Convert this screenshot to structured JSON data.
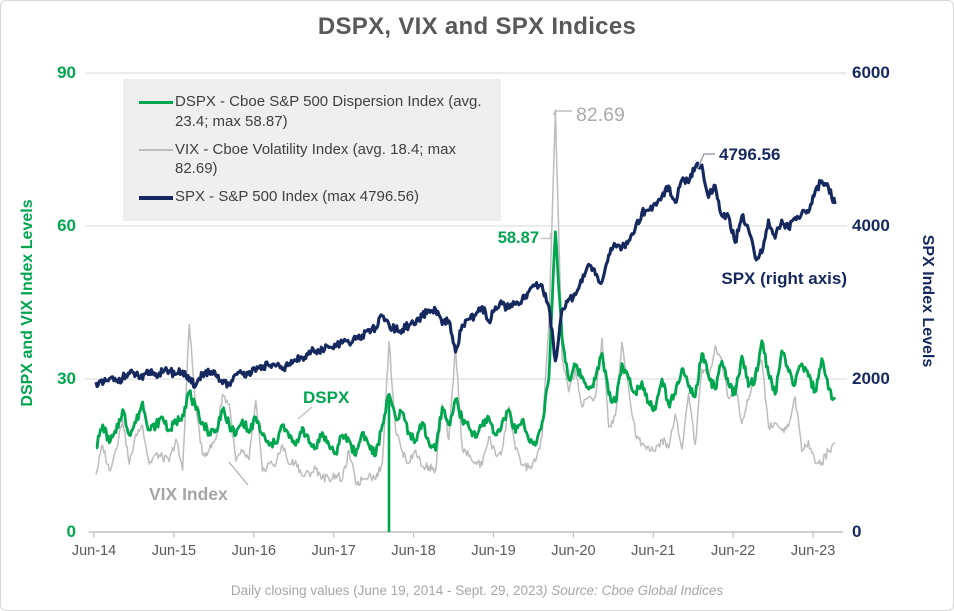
{
  "title": "DSPX, VIX and SPX Indices",
  "footer": {
    "normal": "Daily closing values (June 19, 2014 - Sept. 29, 2023",
    "italic": ") Source: Cboe Global Indices"
  },
  "colors": {
    "dspx_green": "#00A64F",
    "vix_gray": "#BDBDBD",
    "spx_navy": "#16295F",
    "gridline": "#D9D9D9",
    "axis_baseline": "#C0C0C0",
    "title_text": "#595959",
    "footer_text": "#A6A6A6",
    "legend_bg": "#EFEFEF",
    "callout_gray": "#ABABAB"
  },
  "left_axis": {
    "title": "DSPX and VIX Index Levels",
    "ticks": [
      "90",
      "60",
      "30",
      "0"
    ]
  },
  "right_axis": {
    "title": "SPX Index Levels",
    "ticks": [
      "6000",
      "4000",
      "2000",
      "0"
    ]
  },
  "legend": {
    "items": [
      {
        "series": "DSPX",
        "label": "DSPX - Cboe S&P 500 Dispersion Index (avg. 23.4; max 58.87)"
      },
      {
        "series": "VIX",
        "label": "VIX - Cboe Volatility Index (avg. 18.4; max 82.69)"
      },
      {
        "series": "SPX",
        "label": "SPX - S&P 500 Index (max 4796.56)"
      }
    ]
  },
  "series_labels": {
    "dspx": "DSPX",
    "vix": "VIX Index",
    "spx": "SPX (right axis)"
  },
  "chart_data": {
    "type": "line",
    "frequency": "monthly",
    "start_month": "2014-06",
    "end_month": "2023-09",
    "x_tick_labels": [
      "Jun-14",
      "Jun-15",
      "Jun-16",
      "Jun-17",
      "Jun-18",
      "Jun-19",
      "Jun-20",
      "Jun-21",
      "Jun-22",
      "Jun-23"
    ],
    "left_ylim": [
      0,
      90
    ],
    "right_ylim": [
      0,
      6000
    ],
    "grid": "horizontal-only",
    "legend_position": "top-left-inside",
    "series": [
      {
        "name": "DSPX",
        "axis": "left",
        "color": "#00A64F",
        "avg": 23.4,
        "max": 58.87,
        "values": [
          16.5,
          21,
          17.5,
          19.5,
          24,
          19,
          21.5,
          25.5,
          20,
          21,
          22.5,
          20,
          21.5,
          23,
          27.5,
          24,
          21.5,
          19.5,
          20,
          24,
          21,
          19,
          22,
          19.5,
          22.5,
          19,
          17,
          17.5,
          21,
          18.5,
          17,
          20.5,
          17.5,
          16.5,
          19.5,
          17,
          15.5,
          19,
          18,
          15,
          19.5,
          17,
          15,
          21,
          27,
          22.5,
          23.5,
          19.5,
          18,
          21.5,
          17.5,
          16,
          24.5,
          21,
          26,
          22,
          20.5,
          18.5,
          21,
          22.5,
          19,
          21.5,
          24,
          19.5,
          22,
          18,
          17,
          21.5,
          30,
          58.87,
          38,
          30,
          32.5,
          30.5,
          28,
          30,
          35,
          27,
          25.5,
          33,
          30,
          27.5,
          29.5,
          25.5,
          24,
          30,
          25,
          27,
          32,
          28.5,
          26.5,
          35,
          30.5,
          28,
          33.5,
          29,
          27,
          34.5,
          28.5,
          30,
          37.5,
          31,
          27,
          35.5,
          31.5,
          29,
          33,
          30.5,
          27.5,
          34,
          28,
          26
        ]
      },
      {
        "name": "VIX",
        "axis": "left",
        "color": "#BDBDBD",
        "avg": 18.4,
        "max": 82.69,
        "values": [
          11.3,
          17,
          12,
          16.3,
          22,
          13.3,
          19.2,
          20.9,
          13.3,
          15.3,
          14.6,
          13.8,
          18.2,
          12.1,
          40.7,
          24.5,
          15.1,
          16.1,
          18.2,
          27,
          25,
          13.9,
          15.7,
          14.2,
          25.8,
          11.9,
          13.4,
          13.3,
          17.1,
          13.3,
          14,
          11,
          11.5,
          12.4,
          10.8,
          10.4,
          11.2,
          10.3,
          16,
          9.5,
          10.2,
          11.3,
          10.3,
          13.5,
          37.3,
          20,
          15.9,
          13.5,
          16.1,
          12.8,
          12.9,
          12.1,
          25,
          18.1,
          36.1,
          16.6,
          14.8,
          13.7,
          13.1,
          18.7,
          15.1,
          16.1,
          24.6,
          16.2,
          13.2,
          12.6,
          13.8,
          18.8,
          40.1,
          82.69,
          34.2,
          27.5,
          32,
          24.5,
          26.4,
          26.4,
          38,
          20.6,
          22.8,
          37.2,
          28,
          19.4,
          17.3,
          16.8,
          15.8,
          18.2,
          16.5,
          23.1,
          16.3,
          27.2,
          17.2,
          31.9,
          30.2,
          36.5,
          33.4,
          26.2,
          28.7,
          21.3,
          25.9,
          31.6,
          33.6,
          20.6,
          21.4,
          19.9,
          20.7,
          26.5,
          15.8,
          17.9,
          13.6,
          13.6,
          15.9,
          17.5
        ]
      },
      {
        "name": "SPX",
        "axis": "right",
        "color": "#16295F",
        "max": 4796.56,
        "values": [
          1960,
          1930,
          2003,
          1972,
          2018,
          2068,
          2059,
          1995,
          2105,
          2068,
          2086,
          2107,
          2063,
          2104,
          1972,
          1920,
          2079,
          2080,
          2044,
          1940,
          1932,
          2060,
          2065,
          2097,
          2099,
          2174,
          2171,
          2168,
          2126,
          2199,
          2239,
          2279,
          2364,
          2363,
          2384,
          2412,
          2423,
          2470,
          2472,
          2519,
          2575,
          2648,
          2674,
          2824,
          2714,
          2641,
          2648,
          2705,
          2718,
          2816,
          2902,
          2914,
          2712,
          2760,
          2351,
          2704,
          2785,
          2834,
          2946,
          2752,
          2942,
          2980,
          2926,
          2977,
          3038,
          3141,
          3231,
          3226,
          2954,
          2237,
          2912,
          3044,
          3100,
          3271,
          3500,
          3363,
          3270,
          3622,
          3756,
          3714,
          3811,
          3973,
          4181,
          4204,
          4298,
          4395,
          4523,
          4308,
          4605,
          4567,
          4766,
          4796.56,
          4374,
          4530,
          4132,
          4132,
          3785,
          4130,
          3955,
          3586,
          3650,
          4080,
          3840,
          4077,
          3970,
          4109,
          4169,
          4180,
          4450,
          4589,
          4508,
          4288
        ]
      }
    ],
    "annotations": [
      {
        "id": "vix_max",
        "series": "VIX",
        "month": "2020-03",
        "value": 82.69,
        "label": "82.69"
      },
      {
        "id": "dspx_max",
        "series": "DSPX",
        "month": "2020-03",
        "value": 58.87,
        "label": "58.87"
      },
      {
        "id": "spx_max",
        "series": "SPX",
        "month": "2022-01",
        "value": 4796.56,
        "label": "4796.56"
      }
    ],
    "events": [
      {
        "id": "dspx_zero_dip",
        "series": "DSPX",
        "month": "2018-02",
        "value": 0,
        "note": "single-day vertical drop to zero"
      }
    ]
  }
}
